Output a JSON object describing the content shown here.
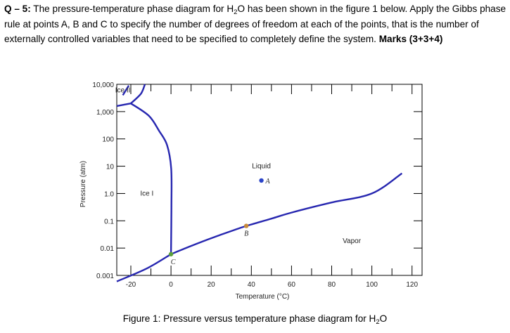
{
  "question": {
    "number": "Q – 5:",
    "text_before_formula": " The pressure-temperature phase diagram for H",
    "formula_sub": "2",
    "text_after_formula": "O has been shown in the figure 1 below. Apply the Gibbs phase rule at points A, B and C to specify the number of degrees of freedom at each of the points, that is the number of externally controlled variables that need to be specified to completely define the system. ",
    "marks": "Marks (3+3+4)"
  },
  "caption": {
    "prefix": "Figure 1: Pressure versus temperature phase diagram for H",
    "sub": "2",
    "suffix": "O"
  },
  "colors": {
    "curve": "#2727b0",
    "pointA": "#2b44c8",
    "pointB": "#c88a3c",
    "pointC": "#5aa03a",
    "axis": "#000000"
  },
  "chart_data": {
    "type": "line",
    "xlabel": "Temperature (°C)",
    "ylabel": "Pressure (atm)",
    "xlim": [
      -27,
      125
    ],
    "ylim_log10": [
      -3,
      4
    ],
    "log_y": true,
    "x_ticks": [
      -20,
      0,
      20,
      40,
      60,
      80,
      100,
      120
    ],
    "y_ticks": [
      {
        "value": 0.001,
        "label": "0.001"
      },
      {
        "value": 0.01,
        "label": "0.01"
      },
      {
        "value": 0.1,
        "label": "0.1"
      },
      {
        "value": 1,
        "label": "1.0"
      },
      {
        "value": 10,
        "label": "10"
      },
      {
        "value": 100,
        "label": "100"
      },
      {
        "value": 1000,
        "label": "1,000"
      },
      {
        "value": 10000,
        "label": "10,000"
      }
    ],
    "series": [
      {
        "points": [
          [
            -27,
            0.0006
          ],
          [
            -12,
            0.0018
          ],
          [
            0,
            0.006
          ]
        ]
      },
      {
        "points": [
          [
            0,
            0.006
          ],
          [
            10,
            0.012
          ],
          [
            20,
            0.023
          ],
          [
            30,
            0.042
          ],
          [
            37.5,
            0.065
          ],
          [
            50,
            0.12
          ],
          [
            60,
            0.2
          ],
          [
            80,
            0.47
          ],
          [
            100,
            1.0
          ],
          [
            115,
            5.5
          ]
        ]
      },
      {
        "points": [
          [
            0,
            0.006
          ],
          [
            0.2,
            0.3
          ],
          [
            0.1,
            8
          ],
          [
            -2,
            60
          ],
          [
            -6,
            200
          ],
          [
            -11,
            700
          ],
          [
            -20,
            2000
          ]
        ]
      },
      {
        "points": [
          [
            -20,
            2000
          ],
          [
            -27,
            1600
          ]
        ]
      },
      {
        "points": [
          [
            -20,
            2000
          ],
          [
            -15,
            4500
          ],
          [
            -13,
            10000
          ]
        ]
      },
      {
        "points": [
          [
            -24,
            4000
          ],
          [
            -21,
            9000
          ]
        ]
      }
    ],
    "region_labels": [
      {
        "text": "Ice II",
        "x": -24,
        "y": 6000
      },
      {
        "text": "Ice I",
        "x": -12,
        "y": 1.0
      },
      {
        "text": "Liquid",
        "x": 45,
        "y": 10
      },
      {
        "text": "Vapor",
        "x": 90,
        "y": 0.018
      }
    ],
    "points": [
      {
        "label": "A",
        "x": 45,
        "y": 3.0
      },
      {
        "label": "B",
        "x": 37.5,
        "y": 0.065
      },
      {
        "label": "C",
        "x": 0,
        "y": 0.006
      }
    ]
  }
}
